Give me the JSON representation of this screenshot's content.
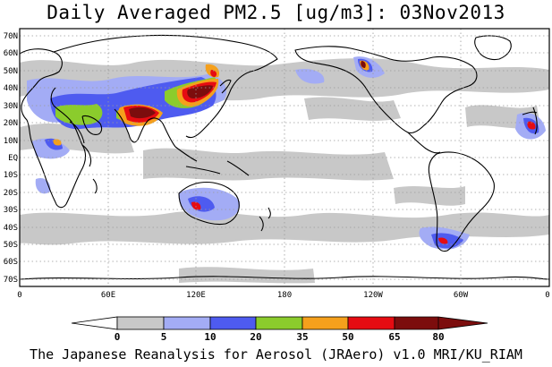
{
  "title": "Daily Averaged PM2.5 [ug/m3]: 03Nov2013",
  "footer": "The Japanese Reanalysis for Aerosol (JRAero) v1.0 MRI/KU_RIAM",
  "colors": {
    "land_outline": "#000000",
    "grid": "#9a9a9a",
    "bin_5": "#c8c8c8",
    "bin_10": "#a3acf5",
    "bin_20": "#4e5bf0",
    "bin_35": "#8bcc2c",
    "bin_50": "#f5a01c",
    "bin_65": "#e60c12",
    "bin_80": "#7c0d0d"
  },
  "map": {
    "projection": "equirectangular",
    "lon_range": [
      0,
      360
    ],
    "lat_range": [
      -75,
      75
    ],
    "lon_ticks": [
      "0",
      "60E",
      "120E",
      "180",
      "120W",
      "60W",
      "0"
    ],
    "lat_ticks": [
      "70N",
      "60N",
      "50N",
      "40N",
      "30N",
      "20N",
      "10N",
      "EQ",
      "10S",
      "20S",
      "30S",
      "40S",
      "50S",
      "60S",
      "70S"
    ],
    "grid": "dotted"
  },
  "colorbar": {
    "ticks": [
      "0",
      "5",
      "10",
      "20",
      "35",
      "50",
      "65",
      "80"
    ],
    "fills": [
      "#ffffff",
      "#c8c8c8",
      "#a3acf5",
      "#4e5bf0",
      "#8bcc2c",
      "#f5a01c",
      "#e60c12",
      "#7c0d0d"
    ]
  }
}
